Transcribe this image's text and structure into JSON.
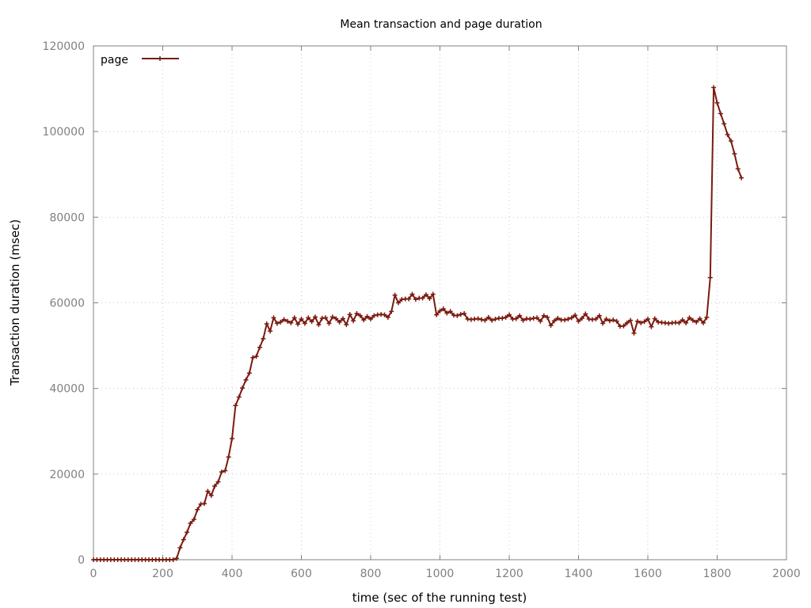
{
  "chart_data": {
    "type": "line",
    "title": "Mean transaction and page duration",
    "xlabel": "time (sec of the running test)",
    "ylabel": "Transaction duration (msec)",
    "xlim": [
      0,
      2000
    ],
    "ylim": [
      0,
      120000
    ],
    "xticks": [
      0,
      200,
      400,
      600,
      800,
      1000,
      1200,
      1400,
      1600,
      1800,
      2000
    ],
    "yticks": [
      0,
      20000,
      40000,
      60000,
      80000,
      100000,
      120000
    ],
    "grid": true,
    "legend_position": "top-left",
    "colors": {
      "series": "#7a1a0f",
      "grid": "#c8c8c8",
      "axis": "#808080"
    },
    "series": [
      {
        "name": "page",
        "x": [
          0,
          10,
          20,
          30,
          40,
          50,
          60,
          70,
          80,
          90,
          100,
          110,
          120,
          130,
          140,
          150,
          160,
          170,
          180,
          190,
          200,
          210,
          220,
          230,
          240,
          250,
          260,
          270,
          280,
          290,
          300,
          310,
          320,
          330,
          340,
          350,
          360,
          370,
          380,
          390,
          400,
          410,
          420,
          430,
          440,
          450,
          460,
          470,
          480,
          490,
          500,
          510,
          520,
          530,
          540,
          550,
          560,
          570,
          580,
          590,
          600,
          610,
          620,
          630,
          640,
          650,
          660,
          670,
          680,
          690,
          700,
          710,
          720,
          730,
          740,
          750,
          760,
          770,
          780,
          790,
          800,
          810,
          820,
          830,
          840,
          850,
          860,
          870,
          880,
          890,
          900,
          910,
          920,
          930,
          940,
          950,
          960,
          970,
          980,
          990,
          1000,
          1010,
          1020,
          1030,
          1040,
          1050,
          1060,
          1070,
          1080,
          1090,
          1100,
          1110,
          1120,
          1130,
          1140,
          1150,
          1160,
          1170,
          1180,
          1190,
          1200,
          1210,
          1220,
          1230,
          1240,
          1250,
          1260,
          1270,
          1280,
          1290,
          1300,
          1310,
          1320,
          1330,
          1340,
          1350,
          1360,
          1370,
          1380,
          1390,
          1400,
          1410,
          1420,
          1430,
          1440,
          1450,
          1460,
          1470,
          1480,
          1490,
          1500,
          1510,
          1520,
          1530,
          1540,
          1550,
          1560,
          1570,
          1580,
          1590,
          1600,
          1610,
          1620,
          1630,
          1640,
          1650,
          1660,
          1670,
          1680,
          1690,
          1700,
          1710,
          1720,
          1730,
          1740,
          1750,
          1760,
          1770,
          1780,
          1790,
          1800,
          1810,
          1820,
          1830,
          1840,
          1850,
          1860,
          1870
        ],
        "y": [
          0,
          0,
          0,
          0,
          0,
          0,
          0,
          0,
          0,
          0,
          0,
          0,
          0,
          0,
          0,
          0,
          0,
          0,
          0,
          0,
          0,
          0,
          0,
          0,
          300,
          2800,
          4700,
          6400,
          8500,
          9400,
          11700,
          13000,
          13100,
          16000,
          15000,
          17200,
          18200,
          20500,
          20800,
          24000,
          28300,
          36000,
          38000,
          40100,
          42000,
          43600,
          47200,
          47500,
          49600,
          51600,
          55100,
          53400,
          56500,
          55200,
          55500,
          56100,
          55700,
          55300,
          56500,
          55000,
          56200,
          55200,
          56500,
          55600,
          56700,
          54900,
          56400,
          56500,
          55200,
          56700,
          56300,
          55500,
          56300,
          54900,
          57300,
          55800,
          57500,
          57000,
          56000,
          56800,
          56200,
          57000,
          57200,
          57300,
          57200,
          56600,
          58000,
          61800,
          60000,
          60800,
          60900,
          60900,
          62000,
          60800,
          61100,
          61100,
          61900,
          61000,
          62000,
          57200,
          58100,
          58600,
          57600,
          58000,
          57100,
          57000,
          57300,
          57500,
          56200,
          56100,
          56200,
          56300,
          56100,
          55900,
          56600,
          55900,
          56200,
          56400,
          56400,
          56600,
          57200,
          56200,
          56300,
          57000,
          55900,
          56300,
          56200,
          56400,
          56500,
          55700,
          57000,
          56600,
          54700,
          55800,
          56400,
          56000,
          56000,
          56200,
          56500,
          57100,
          55700,
          56400,
          57400,
          56200,
          56100,
          56200,
          57000,
          55200,
          56200,
          55800,
          56000,
          55700,
          54500,
          54600,
          55300,
          55900,
          52900,
          55700,
          55300,
          55600,
          56200,
          54400,
          56300,
          55500,
          55400,
          55300,
          55200,
          55300,
          55400,
          55300,
          56000,
          55300,
          56500,
          55900,
          55500,
          56300,
          55300,
          56600,
          65900,
          110300,
          106700,
          104200,
          101800,
          99300,
          97800,
          94800,
          91300,
          89200
        ]
      }
    ]
  }
}
